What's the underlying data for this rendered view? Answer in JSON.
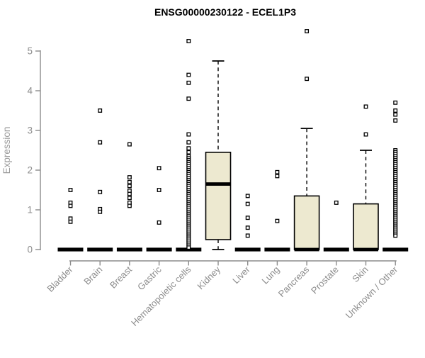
{
  "page": {
    "title": "ENSG00000230122 - ECEL1P3"
  },
  "chart_data": {
    "type": "boxplot",
    "title": "ENSG00000230122 - ECEL1P3",
    "xlabel": "",
    "ylabel": "Expression",
    "ylim": [
      0,
      5.6
    ],
    "yticks": [
      0,
      1,
      2,
      3,
      4,
      5
    ],
    "grid": false,
    "legend": "none",
    "colors": {
      "box_fill": "#EDE9D0",
      "box_stroke": "#000000",
      "median": "#000000",
      "axis": "#8c8c8c",
      "title": "#000000",
      "background": "#ffffff"
    },
    "categories": [
      "Bladder",
      "Brain",
      "Breast",
      "Gastric",
      "Hematopoietic cells",
      "Kidney",
      "Liver",
      "Lung",
      "Pancreas",
      "Prostate",
      "Skin",
      "Unknown / Other"
    ],
    "boxes": [
      {
        "label": "Bladder",
        "q1": 0,
        "median": 0,
        "q3": 0,
        "whisker_low": 0,
        "whisker_high": 0,
        "outliers": [
          1.5,
          1.18,
          1.1,
          0.78,
          0.7
        ]
      },
      {
        "label": "Brain",
        "q1": 0,
        "median": 0,
        "q3": 0,
        "whisker_low": 0,
        "whisker_high": 0,
        "outliers": [
          3.5,
          2.7,
          1.45,
          1.02,
          0.95
        ]
      },
      {
        "label": "Breast",
        "q1": 0,
        "median": 0,
        "q3": 0,
        "whisker_low": 0,
        "whisker_high": 0,
        "outliers": [
          2.65,
          1.82,
          1.7,
          1.6,
          1.48,
          1.4,
          1.3,
          1.18,
          1.1
        ]
      },
      {
        "label": "Gastric",
        "q1": 0,
        "median": 0,
        "q3": 0,
        "whisker_low": 0,
        "whisker_high": 0,
        "outliers": [
          2.05,
          1.5,
          0.68
        ]
      },
      {
        "label": "Hematopoietic cells",
        "q1": 0,
        "median": 0,
        "q3": 0,
        "whisker_low": 0,
        "whisker_high": 0,
        "outliers": [
          5.25,
          4.4,
          4.2,
          3.8,
          2.9,
          2.7,
          2.55,
          2.45,
          2.35,
          2.3,
          2.25,
          2.2,
          2.15,
          2.1,
          2.05,
          2.0,
          1.95,
          1.9,
          1.85,
          1.8,
          1.75,
          1.7,
          1.65,
          1.6,
          1.55,
          1.5,
          1.45,
          1.4,
          1.35,
          1.3,
          1.25,
          1.2,
          1.15,
          1.1,
          1.05,
          1.0,
          0.95,
          0.9,
          0.85,
          0.8,
          0.75,
          0.7,
          0.65,
          0.6,
          0.55,
          0.5,
          0.45,
          0.4,
          0.35,
          0.3,
          0.25,
          0.2,
          0.15,
          0.1,
          0.05
        ]
      },
      {
        "label": "Kidney",
        "q1": 0.25,
        "median": 1.65,
        "q3": 2.45,
        "whisker_low": 0,
        "whisker_high": 4.75,
        "outliers": []
      },
      {
        "label": "Liver",
        "q1": 0,
        "median": 0,
        "q3": 0,
        "whisker_low": 0,
        "whisker_high": 0,
        "outliers": [
          1.35,
          1.15,
          0.8,
          0.55,
          0.35
        ]
      },
      {
        "label": "Lung",
        "q1": 0,
        "median": 0,
        "q3": 0,
        "whisker_low": 0,
        "whisker_high": 0,
        "outliers": [
          1.95,
          1.85,
          0.72
        ]
      },
      {
        "label": "Pancreas",
        "q1": 0,
        "median": 0,
        "q3": 1.35,
        "whisker_low": 0,
        "whisker_high": 3.05,
        "outliers": [
          5.5,
          4.3
        ]
      },
      {
        "label": "Prostate",
        "q1": 0,
        "median": 0,
        "q3": 0,
        "whisker_low": 0,
        "whisker_high": 0,
        "outliers": [
          1.18
        ]
      },
      {
        "label": "Skin",
        "q1": 0,
        "median": 0,
        "q3": 1.15,
        "whisker_low": 0,
        "whisker_high": 2.5,
        "outliers": [
          3.6,
          2.9
        ]
      },
      {
        "label": "Unknown / Other",
        "q1": 0,
        "median": 0,
        "q3": 0,
        "whisker_low": 0,
        "whisker_high": 0,
        "outliers": [
          3.7,
          3.5,
          3.4,
          3.25,
          2.5,
          2.45,
          2.4,
          2.35,
          2.3,
          2.25,
          2.2,
          2.15,
          2.1,
          2.05,
          2.0,
          1.95,
          1.9,
          1.85,
          1.8,
          1.75,
          1.7,
          1.65,
          1.6,
          1.55,
          1.5,
          1.45,
          1.4,
          1.35,
          1.3,
          1.25,
          1.2,
          1.15,
          1.1,
          1.05,
          1.0,
          0.95,
          0.9,
          0.85,
          0.8,
          0.75,
          0.7,
          0.65,
          0.6,
          0.55,
          0.5,
          0.45,
          0.4,
          0.35
        ]
      }
    ]
  }
}
